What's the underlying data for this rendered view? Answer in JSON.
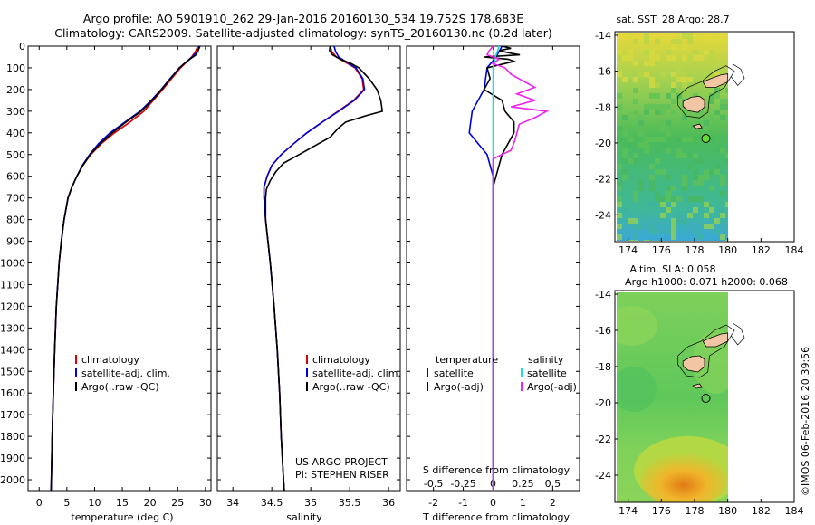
{
  "header": {
    "title_line1": "Argo profile: AO 5901910_262 29-Jan-2016 20160130_534 19.752S 178.683E",
    "title_line2": "Climatology: CARS2009. Satellite-adjusted climatology: synTS_20160130.nc (0.2d later)"
  },
  "colors": {
    "climatology": "#dd0000",
    "satellite_adj": "#0000dd",
    "argo": "#000000",
    "sat_sal": "#22dddd",
    "argo_sal_diff": "#ee22ee",
    "land": "#f2c6a4"
  },
  "depth_axis": {
    "ticks": [
      0,
      100,
      200,
      300,
      400,
      500,
      600,
      700,
      800,
      900,
      1000,
      1100,
      1200,
      1300,
      1400,
      1500,
      1600,
      1700,
      1800,
      1900,
      2000
    ],
    "range": [
      0,
      2050
    ]
  },
  "chart_data": [
    {
      "type": "line",
      "xlabel": "temperature (deg C)",
      "xlim": [
        -2,
        31
      ],
      "xticks": [
        0,
        5,
        10,
        15,
        20,
        25,
        30
      ],
      "legend": [
        "climatology",
        "satellite-adj. clim.",
        "Argo(..raw -QC)"
      ],
      "legend_placement": "lower-center",
      "series": [
        {
          "name": "climatology",
          "depth": [
            0,
            25,
            50,
            75,
            100,
            150,
            200,
            250,
            300,
            350,
            400,
            450,
            500,
            550,
            600,
            650,
            700,
            800,
            900,
            1000,
            1200,
            1400,
            1600,
            1800,
            2000,
            2050
          ],
          "values": [
            28.6,
            28.2,
            27.5,
            26.5,
            25.5,
            23.9,
            22.3,
            20.6,
            18.9,
            16.4,
            13.6,
            11.2,
            9.3,
            7.9,
            6.8,
            5.9,
            5.2,
            4.5,
            4.0,
            3.6,
            3.1,
            2.8,
            2.55,
            2.35,
            2.2,
            2.15
          ]
        },
        {
          "name": "satellite-adj. clim.",
          "depth": [
            0,
            25,
            50,
            75,
            100,
            150,
            200,
            250,
            300,
            350,
            400,
            450,
            500,
            550,
            600,
            650,
            700,
            800,
            900,
            1000,
            1200,
            1400,
            1600,
            1800,
            2000,
            2050
          ],
          "values": [
            28.9,
            28.5,
            27.6,
            26.4,
            25.3,
            23.6,
            22.0,
            20.2,
            18.2,
            15.5,
            12.8,
            10.7,
            9.1,
            7.8,
            6.8,
            5.9,
            5.2,
            4.5,
            4.0,
            3.6,
            3.1,
            2.8,
            2.55,
            2.35,
            2.2,
            2.15
          ]
        },
        {
          "name": "Argo(..raw -QC)",
          "depth": [
            0,
            20,
            40,
            60,
            80,
            100,
            150,
            200,
            250,
            300,
            350,
            400,
            450,
            500,
            550,
            600,
            650,
            700,
            800,
            900,
            1000,
            1200,
            1400,
            1600,
            1800,
            2000,
            2050
          ],
          "values": [
            29.0,
            28.7,
            28.3,
            27.2,
            26.2,
            25.3,
            23.7,
            22.1,
            20.4,
            18.4,
            15.7,
            13.2,
            11.0,
            9.2,
            7.9,
            6.8,
            5.9,
            5.2,
            4.5,
            4.0,
            3.6,
            3.1,
            2.8,
            2.55,
            2.35,
            2.2,
            2.15
          ]
        }
      ]
    },
    {
      "type": "line",
      "xlabel": "salinity",
      "xlim": [
        33.8,
        36.15
      ],
      "xticks": [
        34,
        34.5,
        35,
        35.5,
        36
      ],
      "legend": [
        "climatology",
        "satellite-adj. clim.",
        "Argo(..raw -QC)"
      ],
      "legend_placement": "lower-right",
      "annotation": [
        "US ARGO PROJECT",
        "PI: STEPHEN RISER"
      ],
      "series": [
        {
          "name": "climatology",
          "depth": [
            0,
            25,
            50,
            75,
            100,
            150,
            200,
            250,
            300,
            350,
            400,
            450,
            500,
            550,
            600,
            650,
            700,
            800,
            900,
            1000,
            1200,
            1400,
            1600,
            1800,
            2000,
            2050
          ],
          "values": [
            35.25,
            35.27,
            35.33,
            35.45,
            35.57,
            35.66,
            35.68,
            35.55,
            35.35,
            35.15,
            34.95,
            34.78,
            34.62,
            34.5,
            34.44,
            34.4,
            34.4,
            34.42,
            34.45,
            34.48,
            34.53,
            34.57,
            34.6,
            34.62,
            34.65,
            34.66
          ]
        },
        {
          "name": "satellite-adj. clim.",
          "depth": [
            0,
            25,
            50,
            75,
            100,
            150,
            200,
            250,
            300,
            350,
            400,
            450,
            500,
            550,
            600,
            650,
            700,
            800,
            900,
            1000,
            1200,
            1400,
            1600,
            1800,
            2000,
            2050
          ],
          "values": [
            35.3,
            35.32,
            35.36,
            35.47,
            35.58,
            35.67,
            35.69,
            35.56,
            35.36,
            35.15,
            34.95,
            34.78,
            34.62,
            34.5,
            34.44,
            34.4,
            34.4,
            34.42,
            34.45,
            34.48,
            34.53,
            34.57,
            34.6,
            34.62,
            34.65,
            34.66
          ]
        },
        {
          "name": "Argo(..raw -QC)",
          "depth": [
            0,
            20,
            40,
            60,
            80,
            100,
            150,
            200,
            250,
            300,
            320,
            350,
            380,
            420,
            450,
            500,
            540,
            580,
            620,
            660,
            700,
            800,
            900,
            1000,
            1200,
            1400,
            1600,
            1800,
            2000,
            2050
          ],
          "values": [
            35.25,
            35.24,
            35.28,
            35.38,
            35.52,
            35.62,
            35.75,
            35.85,
            35.9,
            35.92,
            35.72,
            35.45,
            35.35,
            35.25,
            35.1,
            34.85,
            34.65,
            34.55,
            34.48,
            34.43,
            34.42,
            34.42,
            34.45,
            34.48,
            34.53,
            34.57,
            34.6,
            34.62,
            34.65,
            34.66
          ]
        }
      ]
    },
    {
      "type": "line",
      "xlabel": "T difference from climatology",
      "xlabel_top": "S difference from climatology",
      "xlim": [
        -2.9,
        2.9
      ],
      "xticks": [
        -2,
        -1,
        0,
        1,
        2
      ],
      "xticks_top": [
        -0.5,
        -0.25,
        0,
        0.25,
        0.5
      ],
      "legend_temperature_title": "temperature",
      "legend_salinity_title": "salinity",
      "legend": [
        "satellite",
        "Argo(-adj)",
        "satellite",
        "Argo(-adj)"
      ],
      "legend_placement": "lower-center",
      "series": [
        {
          "name": "satellite",
          "quantity": "temperature",
          "depth": [
            0,
            50,
            100,
            200,
            300,
            400,
            500,
            600,
            2050
          ],
          "values": [
            0.3,
            0.1,
            -0.2,
            -0.3,
            -0.7,
            -0.8,
            -0.2,
            0.0,
            0.0
          ]
        },
        {
          "name": "Argo(-adj)",
          "quantity": "temperature",
          "depth": [
            0,
            10,
            20,
            30,
            40,
            50,
            60,
            70,
            80,
            100,
            150,
            200,
            250,
            300,
            350,
            400,
            450,
            500,
            550,
            600,
            650,
            2050
          ],
          "values": [
            0.3,
            0.6,
            0.2,
            0.5,
            0.9,
            -0.3,
            0.5,
            0.7,
            0.4,
            -0.2,
            -0.1,
            -0.3,
            0.3,
            0.4,
            0.7,
            0.7,
            0.5,
            0.3,
            0.2,
            0.1,
            0.0,
            0.0
          ]
        },
        {
          "name": "satellite",
          "quantity": "salinity",
          "depth": [
            0,
            50,
            100,
            200,
            300,
            400,
            500,
            600,
            2050
          ],
          "values": [
            0.05,
            0.02,
            0.0,
            0.0,
            0.0,
            0.0,
            0.0,
            0.0,
            0.0
          ]
        },
        {
          "name": "Argo(-adj)",
          "quantity": "salinity",
          "depth": [
            0,
            20,
            40,
            60,
            80,
            100,
            130,
            160,
            190,
            220,
            250,
            280,
            300,
            330,
            360,
            400,
            440,
            480,
            520,
            560,
            600,
            2050
          ],
          "values": [
            0.0,
            -0.03,
            -0.05,
            0.05,
            0.0,
            0.1,
            0.15,
            0.25,
            0.35,
            0.2,
            0.35,
            0.15,
            0.45,
            0.35,
            0.22,
            0.2,
            0.18,
            0.15,
            0.0,
            0.0,
            0.0,
            0.0
          ]
        }
      ]
    },
    {
      "type": "heatmap",
      "title": "sat. SST: 28  Argo: 28.7",
      "xlim": [
        173.2,
        184
      ],
      "ylim": [
        -25.5,
        -13.8
      ],
      "xticks": [
        174,
        176,
        178,
        180,
        182,
        184
      ],
      "yticks": [
        -14,
        -16,
        -18,
        -20,
        -22,
        -24
      ],
      "argo_position": [
        178.683,
        -19.752
      ]
    },
    {
      "type": "heatmap",
      "title_line1": "Altim. SLA: 0.058",
      "title_line2": "Argo h1000: 0.071 h2000: 0.068",
      "xlim": [
        173.2,
        184
      ],
      "ylim": [
        -25.5,
        -13.8
      ],
      "xticks": [
        174,
        176,
        178,
        180,
        182,
        184
      ],
      "yticks": [
        -14,
        -16,
        -18,
        -20,
        -22,
        -24
      ],
      "argo_position": [
        178.683,
        -19.752
      ]
    }
  ],
  "credit": "©IMOS 06-Feb-2016 20:39:56"
}
